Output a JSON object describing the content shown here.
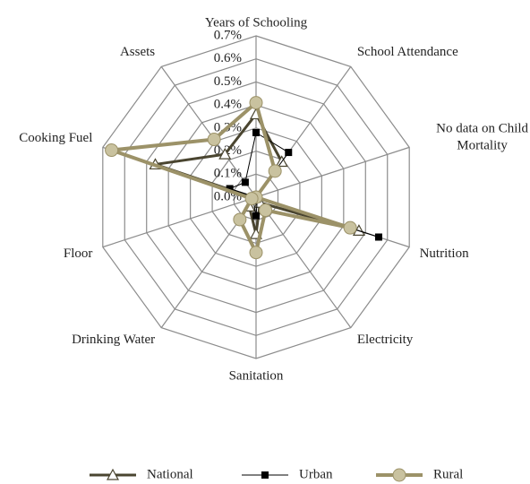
{
  "chart_data": {
    "type": "radar",
    "categories": [
      "Years of Schooling",
      "School Attendance",
      "No data on Child Mortality",
      "Nutrition",
      "Electricity",
      "Sanitation",
      "Drinking Water",
      "Floor",
      "Cooking Fuel",
      "Assets"
    ],
    "series": [
      {
        "name": "National",
        "color": "#4a4530",
        "values": [
          0.36,
          0.19,
          0.0,
          0.47,
          0.03,
          0.16,
          0.05,
          0.01,
          0.46,
          0.23
        ]
      },
      {
        "name": "Urban",
        "color": "#000000",
        "values": [
          0.28,
          0.24,
          0.0,
          0.56,
          0.01,
          0.08,
          0.02,
          0.0,
          0.12,
          0.08
        ]
      },
      {
        "name": "Rural",
        "color": "#9c9268",
        "values": [
          0.41,
          0.14,
          0.0,
          0.43,
          0.07,
          0.24,
          0.12,
          0.02,
          0.66,
          0.31
        ]
      }
    ],
    "ylim": [
      0,
      0.7
    ],
    "yticks": [
      {
        "value": 0,
        "label": "0.0%"
      },
      {
        "value": 0.1,
        "label": "0.1%"
      },
      {
        "value": 0.2,
        "label": "0.2%"
      },
      {
        "value": 0.3,
        "label": "0.3%"
      },
      {
        "value": 0.4,
        "label": "0.4%"
      },
      {
        "value": 0.5,
        "label": "0.5%"
      },
      {
        "value": 0.6,
        "label": "0.6%"
      },
      {
        "value": 0.7,
        "label": "0.7%"
      }
    ],
    "grid": true,
    "legend": "bottom"
  }
}
